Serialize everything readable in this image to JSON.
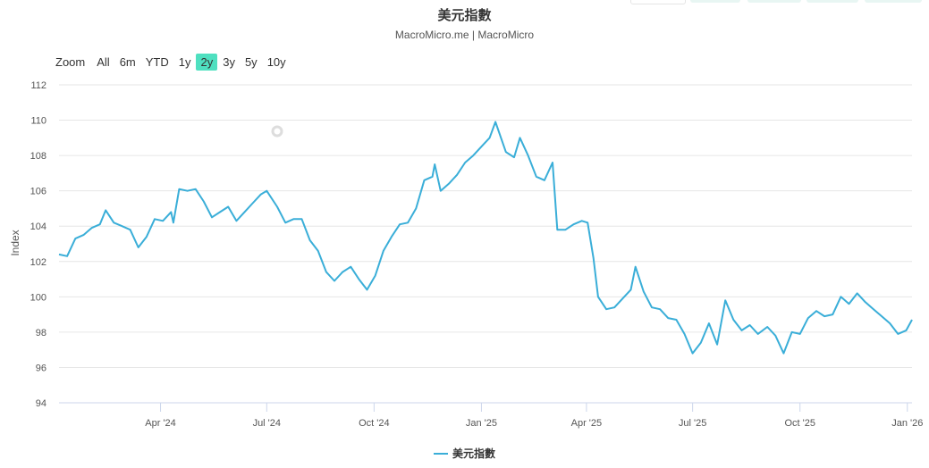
{
  "title": "美元指數",
  "subtitle": "MacroMicro.me | MacroMicro",
  "range_selector": {
    "zoom_label": "Zoom",
    "buttons": [
      "All",
      "6m",
      "YTD",
      "1y",
      "2y",
      "3y",
      "5y",
      "10y"
    ],
    "selected": "2y",
    "selected_color": "#4fe0c0"
  },
  "chart_data": {
    "type": "line",
    "ylabel": "Index",
    "ylim": [
      94,
      112
    ],
    "yticks": [
      94,
      96,
      98,
      100,
      102,
      104,
      106,
      108,
      110,
      112
    ],
    "xlim": [
      "2024-01-05",
      "2026-01-05"
    ],
    "xticks": [
      {
        "date": "2024-04-01",
        "label": "Apr '24"
      },
      {
        "date": "2024-07-01",
        "label": "Jul '24"
      },
      {
        "date": "2024-10-01",
        "label": "Oct '24"
      },
      {
        "date": "2025-01-01",
        "label": "Jan '25"
      },
      {
        "date": "2025-04-01",
        "label": "Apr '25"
      },
      {
        "date": "2025-07-01",
        "label": "Jul '25"
      },
      {
        "date": "2025-10-01",
        "label": "Oct '25"
      },
      {
        "date": "2026-01-01",
        "label": "Jan '26"
      }
    ],
    "grid": true,
    "legend_position": "bottom",
    "series": [
      {
        "name": "美元指數",
        "color": "#3aaed8",
        "points": [
          [
            "2024-01-05",
            102.4
          ],
          [
            "2024-01-12",
            102.3
          ],
          [
            "2024-01-19",
            103.3
          ],
          [
            "2024-01-26",
            103.5
          ],
          [
            "2024-02-02",
            103.9
          ],
          [
            "2024-02-09",
            104.1
          ],
          [
            "2024-02-14",
            104.9
          ],
          [
            "2024-02-21",
            104.2
          ],
          [
            "2024-02-28",
            104.0
          ],
          [
            "2024-03-06",
            103.8
          ],
          [
            "2024-03-13",
            102.8
          ],
          [
            "2024-03-20",
            103.4
          ],
          [
            "2024-03-27",
            104.4
          ],
          [
            "2024-04-03",
            104.3
          ],
          [
            "2024-04-10",
            104.8
          ],
          [
            "2024-04-12",
            104.2
          ],
          [
            "2024-04-17",
            106.1
          ],
          [
            "2024-04-24",
            106.0
          ],
          [
            "2024-05-01",
            106.1
          ],
          [
            "2024-05-08",
            105.4
          ],
          [
            "2024-05-15",
            104.5
          ],
          [
            "2024-05-22",
            104.8
          ],
          [
            "2024-05-29",
            105.1
          ],
          [
            "2024-06-05",
            104.3
          ],
          [
            "2024-06-12",
            104.8
          ],
          [
            "2024-06-19",
            105.3
          ],
          [
            "2024-06-26",
            105.8
          ],
          [
            "2024-07-01",
            106.0
          ],
          [
            "2024-07-10",
            105.1
          ],
          [
            "2024-07-17",
            104.2
          ],
          [
            "2024-07-24",
            104.4
          ],
          [
            "2024-07-31",
            104.4
          ],
          [
            "2024-08-07",
            103.2
          ],
          [
            "2024-08-14",
            102.6
          ],
          [
            "2024-08-21",
            101.4
          ],
          [
            "2024-08-28",
            100.9
          ],
          [
            "2024-09-04",
            101.4
          ],
          [
            "2024-09-11",
            101.7
          ],
          [
            "2024-09-18",
            101.0
          ],
          [
            "2024-09-25",
            100.4
          ],
          [
            "2024-10-02",
            101.2
          ],
          [
            "2024-10-09",
            102.6
          ],
          [
            "2024-10-16",
            103.4
          ],
          [
            "2024-10-23",
            104.1
          ],
          [
            "2024-10-30",
            104.2
          ],
          [
            "2024-11-06",
            105.0
          ],
          [
            "2024-11-13",
            106.6
          ],
          [
            "2024-11-20",
            106.8
          ],
          [
            "2024-11-22",
            107.5
          ],
          [
            "2024-11-27",
            106.0
          ],
          [
            "2024-12-04",
            106.4
          ],
          [
            "2024-12-11",
            106.9
          ],
          [
            "2024-12-18",
            107.6
          ],
          [
            "2024-12-25",
            108.0
          ],
          [
            "2025-01-01",
            108.5
          ],
          [
            "2025-01-08",
            109.0
          ],
          [
            "2025-01-13",
            109.9
          ],
          [
            "2025-01-22",
            108.2
          ],
          [
            "2025-01-29",
            107.9
          ],
          [
            "2025-02-03",
            109.0
          ],
          [
            "2025-02-10",
            108.0
          ],
          [
            "2025-02-17",
            106.8
          ],
          [
            "2025-02-24",
            106.6
          ],
          [
            "2025-03-03",
            107.6
          ],
          [
            "2025-03-07",
            103.8
          ],
          [
            "2025-03-14",
            103.8
          ],
          [
            "2025-03-21",
            104.1
          ],
          [
            "2025-03-28",
            104.3
          ],
          [
            "2025-04-02",
            104.2
          ],
          [
            "2025-04-07",
            102.2
          ],
          [
            "2025-04-11",
            100.0
          ],
          [
            "2025-04-18",
            99.3
          ],
          [
            "2025-04-25",
            99.4
          ],
          [
            "2025-05-02",
            99.9
          ],
          [
            "2025-05-09",
            100.4
          ],
          [
            "2025-05-13",
            101.7
          ],
          [
            "2025-05-20",
            100.3
          ],
          [
            "2025-05-27",
            99.4
          ],
          [
            "2025-06-03",
            99.3
          ],
          [
            "2025-06-10",
            98.8
          ],
          [
            "2025-06-17",
            98.7
          ],
          [
            "2025-06-24",
            97.9
          ],
          [
            "2025-07-01",
            96.8
          ],
          [
            "2025-07-08",
            97.4
          ],
          [
            "2025-07-15",
            98.5
          ],
          [
            "2025-07-22",
            97.3
          ],
          [
            "2025-07-29",
            99.8
          ],
          [
            "2025-08-05",
            98.7
          ],
          [
            "2025-08-12",
            98.1
          ],
          [
            "2025-08-19",
            98.4
          ],
          [
            "2025-08-26",
            97.9
          ],
          [
            "2025-09-03",
            98.3
          ],
          [
            "2025-09-10",
            97.8
          ],
          [
            "2025-09-17",
            96.8
          ],
          [
            "2025-09-24",
            98.0
          ],
          [
            "2025-10-01",
            97.9
          ],
          [
            "2025-10-08",
            98.8
          ],
          [
            "2025-10-15",
            99.2
          ],
          [
            "2025-10-22",
            98.9
          ],
          [
            "2025-10-29",
            99.0
          ],
          [
            "2025-11-05",
            100.0
          ],
          [
            "2025-11-12",
            99.6
          ],
          [
            "2025-11-19",
            100.2
          ],
          [
            "2025-11-26",
            99.7
          ],
          [
            "2025-12-03",
            99.3
          ],
          [
            "2025-12-10",
            98.9
          ],
          [
            "2025-12-17",
            98.5
          ],
          [
            "2025-12-24",
            97.9
          ],
          [
            "2025-12-31",
            98.1
          ],
          [
            "2026-01-05",
            98.7
          ]
        ]
      }
    ]
  }
}
